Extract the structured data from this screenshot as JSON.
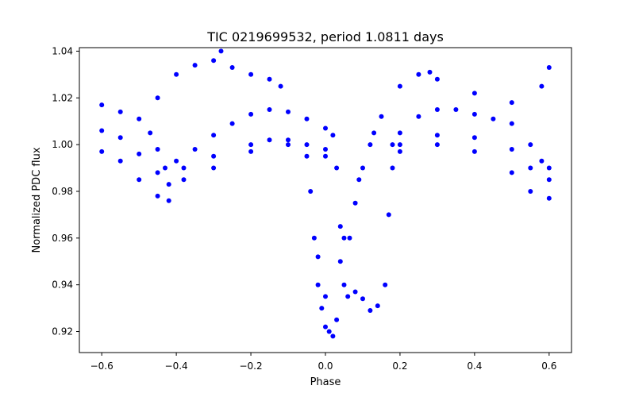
{
  "chart_data": {
    "type": "scatter",
    "title": "TIC 0219699532, period 1.0811 days",
    "xlabel": "Phase",
    "ylabel": "Normalized PDC flux",
    "xlim": [
      -0.66,
      0.66
    ],
    "ylim": [
      0.911,
      1.0415
    ],
    "x_ticks": [
      -0.6,
      -0.4,
      -0.2,
      0.0,
      0.2,
      0.4,
      0.6
    ],
    "x_tick_labels": [
      "−0.6",
      "−0.4",
      "−0.2",
      "0.0",
      "0.2",
      "0.4",
      "0.6"
    ],
    "y_ticks": [
      0.92,
      0.94,
      0.96,
      0.98,
      1.0,
      1.02,
      1.04
    ],
    "y_tick_labels": [
      "0.92",
      "0.94",
      "0.96",
      "0.98",
      "1.00",
      "1.02",
      "1.04"
    ],
    "grid": false,
    "legend": "none",
    "marker_color": "#0000ff",
    "series": [
      {
        "points_phase_flux": [
          [
            -0.6,
            1.017
          ],
          [
            -0.55,
            1.014
          ],
          [
            -0.5,
            1.011
          ],
          [
            -0.47,
            1.005
          ],
          [
            -0.45,
            0.998
          ],
          [
            -0.43,
            0.99
          ],
          [
            -0.4,
            0.993
          ],
          [
            -0.35,
            0.998
          ],
          [
            -0.3,
            1.004
          ],
          [
            -0.25,
            1.009
          ],
          [
            -0.2,
            1.013
          ],
          [
            -0.15,
            1.015
          ],
          [
            -0.1,
            1.014
          ],
          [
            -0.05,
            1.011
          ],
          [
            0.0,
            1.007
          ],
          [
            0.02,
            1.004
          ],
          [
            0.03,
            0.99
          ],
          [
            0.04,
            0.965
          ],
          [
            0.05,
            0.94
          ],
          [
            0.06,
            0.935
          ],
          [
            0.08,
            0.937
          ],
          [
            0.1,
            0.934
          ],
          [
            0.12,
            0.929
          ],
          [
            0.14,
            0.931
          ],
          [
            0.16,
            0.94
          ],
          [
            0.17,
            0.97
          ],
          [
            0.18,
            0.99
          ],
          [
            0.2,
            1.005
          ],
          [
            0.25,
            1.012
          ],
          [
            0.3,
            1.015
          ],
          [
            0.35,
            1.015
          ],
          [
            0.4,
            1.013
          ],
          [
            0.45,
            1.011
          ],
          [
            0.5,
            1.009
          ],
          [
            0.55,
            1.0
          ],
          [
            0.58,
            0.993
          ],
          [
            0.6,
            0.99
          ]
        ]
      },
      {
        "points_phase_flux": [
          [
            -0.6,
            1.006
          ],
          [
            -0.55,
            1.003
          ],
          [
            -0.5,
            0.996
          ],
          [
            -0.45,
            0.988
          ],
          [
            -0.42,
            0.983
          ],
          [
            -0.38,
            0.99
          ],
          [
            -0.3,
            0.995
          ],
          [
            -0.2,
            1.0
          ],
          [
            -0.15,
            1.002
          ],
          [
            -0.1,
            1.002
          ],
          [
            -0.05,
            1.0
          ],
          [
            0.0,
            0.998
          ],
          [
            0.2,
            1.0
          ],
          [
            0.3,
            1.004
          ],
          [
            0.4,
            1.003
          ],
          [
            0.5,
            0.998
          ],
          [
            0.55,
            0.99
          ],
          [
            0.6,
            0.985
          ]
        ]
      },
      {
        "points_phase_flux": [
          [
            -0.6,
            0.997
          ],
          [
            -0.55,
            0.993
          ],
          [
            -0.5,
            0.985
          ],
          [
            -0.45,
            0.978
          ],
          [
            -0.42,
            0.976
          ],
          [
            -0.38,
            0.985
          ],
          [
            -0.3,
            0.99
          ],
          [
            -0.2,
            0.997
          ],
          [
            -0.1,
            1.0
          ],
          [
            0.0,
            0.995
          ],
          [
            0.2,
            0.997
          ],
          [
            0.3,
            1.0
          ],
          [
            0.4,
            0.997
          ],
          [
            0.5,
            0.988
          ],
          [
            0.55,
            0.98
          ],
          [
            0.6,
            0.977
          ]
        ]
      },
      {
        "points_phase_flux": [
          [
            -0.45,
            1.02
          ],
          [
            -0.4,
            1.03
          ],
          [
            -0.35,
            1.034
          ],
          [
            -0.3,
            1.036
          ],
          [
            -0.28,
            1.04
          ],
          [
            -0.25,
            1.033
          ],
          [
            -0.2,
            1.03
          ],
          [
            -0.15,
            1.028
          ],
          [
            -0.12,
            1.025
          ],
          [
            0.2,
            1.025
          ],
          [
            0.25,
            1.03
          ],
          [
            0.28,
            1.031
          ],
          [
            0.3,
            1.028
          ],
          [
            0.4,
            1.022
          ],
          [
            0.5,
            1.018
          ],
          [
            0.58,
            1.025
          ],
          [
            0.6,
            1.033
          ]
        ]
      },
      {
        "points_phase_flux": [
          [
            -0.05,
            0.995
          ],
          [
            -0.04,
            0.98
          ],
          [
            -0.03,
            0.96
          ],
          [
            -0.02,
            0.94
          ],
          [
            -0.01,
            0.93
          ],
          [
            0.0,
            0.922
          ],
          [
            0.01,
            0.92
          ],
          [
            0.02,
            0.918
          ],
          [
            0.03,
            0.925
          ],
          [
            0.0,
            0.935
          ],
          [
            -0.02,
            0.952
          ],
          [
            0.04,
            0.95
          ],
          [
            0.05,
            0.96
          ],
          [
            0.065,
            0.96
          ],
          [
            0.08,
            0.975
          ],
          [
            0.09,
            0.985
          ],
          [
            0.1,
            0.99
          ],
          [
            0.12,
            1.0
          ],
          [
            0.13,
            1.005
          ],
          [
            0.15,
            1.012
          ],
          [
            0.18,
            1.0
          ]
        ]
      }
    ]
  }
}
